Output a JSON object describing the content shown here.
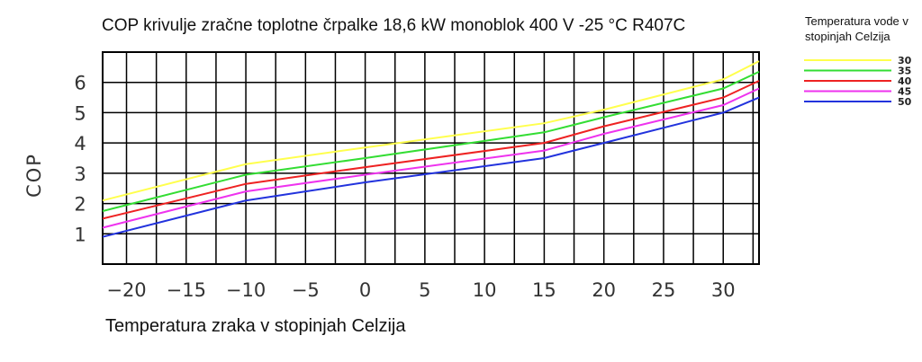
{
  "chart_data": {
    "type": "line",
    "title": "COP krivulje zračne toplotne črpalke 18,6 kW monoblok 400 V -25 °C R407C",
    "xlabel": "Temperatura zraka v stopinjah Celzija",
    "ylabel": "COP",
    "legend_title": "Temperatura vode v stopinjah Celzija",
    "legend_placement": "top-right",
    "grid": true,
    "xlim": [
      -22,
      33
    ],
    "ylim": [
      0,
      7
    ],
    "xticks": [
      "-20",
      "-15",
      "-10",
      "-5",
      "0",
      "5",
      "10",
      "15",
      "20",
      "25",
      "30"
    ],
    "yticks": [
      "1",
      "2",
      "3",
      "4",
      "5",
      "6"
    ],
    "series": [
      {
        "name": "30",
        "color": "#ffff4d",
        "x": [
          -22,
          -10,
          0,
          15,
          20,
          30,
          33
        ],
        "y": [
          2.1,
          3.3,
          3.85,
          4.65,
          5.1,
          6.1,
          6.7
        ]
      },
      {
        "name": "35",
        "color": "#33dd33",
        "x": [
          -22,
          -10,
          0,
          15,
          20,
          30,
          33
        ],
        "y": [
          1.75,
          2.95,
          3.5,
          4.35,
          4.85,
          5.8,
          6.35
        ]
      },
      {
        "name": "40",
        "color": "#ee2222",
        "x": [
          -22,
          -10,
          0,
          15,
          20,
          30,
          33
        ],
        "y": [
          1.5,
          2.65,
          3.2,
          4.0,
          4.55,
          5.5,
          6.05
        ]
      },
      {
        "name": "45",
        "color": "#ee33ee",
        "x": [
          -22,
          -10,
          0,
          15,
          20,
          30,
          33
        ],
        "y": [
          1.2,
          2.4,
          2.95,
          3.75,
          4.3,
          5.25,
          5.8
        ]
      },
      {
        "name": "50",
        "color": "#2233dd",
        "x": [
          -22,
          -10,
          0,
          15,
          20,
          30,
          33
        ],
        "y": [
          0.9,
          2.1,
          2.7,
          3.5,
          4.0,
          5.0,
          5.5
        ]
      }
    ]
  }
}
